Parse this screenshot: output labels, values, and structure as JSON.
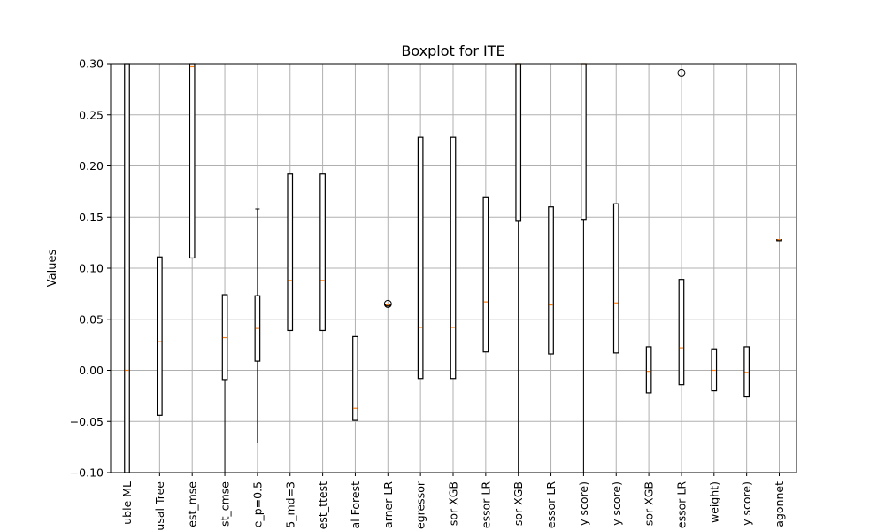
{
  "chart_data": {
    "type": "boxplot",
    "title": "Boxplot for ITE",
    "xlabel": "",
    "ylabel": "Values",
    "ylim": [
      -0.1,
      0.3
    ],
    "yticks": [
      -0.1,
      -0.05,
      0.0,
      0.05,
      0.1,
      0.15,
      0.2,
      0.25,
      0.3
    ],
    "ytick_labels": [
      "−0.10",
      "−0.05",
      "0.00",
      "0.05",
      "0.10",
      "0.15",
      "0.20",
      "0.25",
      "0.30"
    ],
    "grid": true,
    "categories": [
      "uble ML",
      "usal Tree",
      "est_mse",
      "st_cmse",
      "e_p=0.5",
      "5_md=3",
      "est_ttest",
      "al Forest",
      "arner LR",
      "egressor",
      "sor XGB",
      "essor LR",
      "sor XGB",
      "essor LR",
      "y score)",
      "y score)",
      "sor XGB",
      "essor LR",
      "weight)",
      "y score)",
      "agonnet"
    ],
    "boxes": [
      {
        "q1": -0.1,
        "median": 0.0,
        "q3": 0.3,
        "whislo": -0.1,
        "whishi": 0.3,
        "fliers": []
      },
      {
        "q1": -0.044,
        "median": 0.028,
        "q3": 0.111,
        "whislo": -0.044,
        "whishi": 0.111,
        "fliers": []
      },
      {
        "q1": 0.11,
        "median": 0.297,
        "q3": 0.3,
        "whislo": 0.11,
        "whishi": 0.3,
        "fliers": []
      },
      {
        "q1": -0.009,
        "median": 0.032,
        "q3": 0.074,
        "whislo": -0.1,
        "whishi": 0.074,
        "fliers": []
      },
      {
        "q1": 0.009,
        "median": 0.041,
        "q3": 0.073,
        "whislo": -0.071,
        "whishi": 0.158,
        "fliers": []
      },
      {
        "q1": 0.039,
        "median": 0.088,
        "q3": 0.192,
        "whislo": 0.039,
        "whishi": 0.192,
        "fliers": []
      },
      {
        "q1": 0.039,
        "median": 0.088,
        "q3": 0.192,
        "whislo": 0.039,
        "whishi": 0.192,
        "fliers": []
      },
      {
        "q1": -0.049,
        "median": -0.037,
        "q3": 0.033,
        "whislo": -0.049,
        "whishi": 0.033,
        "fliers": []
      },
      {
        "q1": 0.064,
        "median": 0.064,
        "q3": 0.064,
        "whislo": 0.064,
        "whishi": 0.064,
        "fliers": [
          0.065
        ]
      },
      {
        "q1": -0.008,
        "median": 0.042,
        "q3": 0.228,
        "whislo": -0.008,
        "whishi": 0.228,
        "fliers": []
      },
      {
        "q1": -0.008,
        "median": 0.042,
        "q3": 0.228,
        "whislo": -0.008,
        "whishi": 0.228,
        "fliers": []
      },
      {
        "q1": 0.018,
        "median": 0.067,
        "q3": 0.169,
        "whislo": 0.018,
        "whishi": 0.169,
        "fliers": []
      },
      {
        "q1": 0.146,
        "median": 0.3,
        "q3": 0.3,
        "whislo": -0.1,
        "whishi": 0.3,
        "fliers": []
      },
      {
        "q1": 0.016,
        "median": 0.064,
        "q3": 0.16,
        "whislo": 0.016,
        "whishi": 0.16,
        "fliers": []
      },
      {
        "q1": 0.147,
        "median": 0.3,
        "q3": 0.3,
        "whislo": -0.1,
        "whishi": 0.3,
        "fliers": []
      },
      {
        "q1": 0.017,
        "median": 0.066,
        "q3": 0.163,
        "whislo": 0.017,
        "whishi": 0.163,
        "fliers": []
      },
      {
        "q1": -0.022,
        "median": -0.001,
        "q3": 0.023,
        "whislo": -0.022,
        "whishi": 0.023,
        "fliers": []
      },
      {
        "q1": -0.014,
        "median": 0.022,
        "q3": 0.089,
        "whislo": -0.014,
        "whishi": 0.089,
        "fliers": [
          0.291
        ]
      },
      {
        "q1": -0.02,
        "median": 0.0,
        "q3": 0.021,
        "whislo": -0.02,
        "whishi": 0.021,
        "fliers": []
      },
      {
        "q1": -0.026,
        "median": -0.002,
        "q3": 0.023,
        "whislo": -0.026,
        "whishi": 0.023,
        "fliers": []
      },
      {
        "q1": 0.128,
        "median": 0.128,
        "q3": 0.128,
        "whislo": 0.128,
        "whishi": 0.128,
        "fliers": []
      }
    ],
    "colors": {
      "median": "#ff7f0e",
      "box": "#000000",
      "grid": "#b0b0b0"
    }
  }
}
